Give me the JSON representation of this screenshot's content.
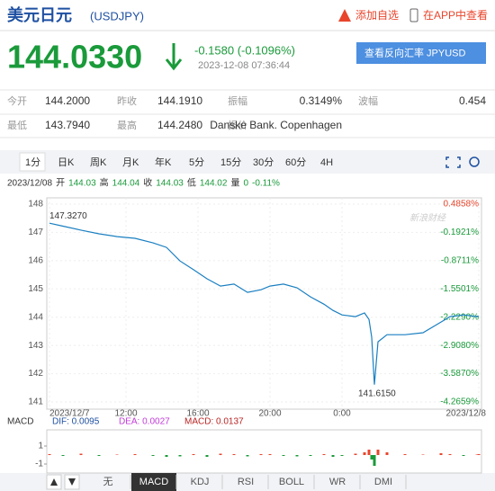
{
  "header": {
    "title": "美元日元",
    "code": "(USDJPY)",
    "add_watch": "添加自选",
    "view_app": "在APP中查看"
  },
  "quote": {
    "price": "144.0330",
    "change": "-0.1580 (-0.1096%)",
    "time": "2023-12-08 07:36:44",
    "reverse_button": "查看反向汇率 JPYUSD"
  },
  "stats": {
    "rows": [
      [
        {
          "label": "今开",
          "value": "144.2000"
        },
        {
          "label": "昨收",
          "value": "144.1910"
        },
        {
          "label": "振幅",
          "value": "0.3149%"
        },
        {
          "label": "波幅",
          "value": "0.454"
        }
      ],
      [
        {
          "label": "最低",
          "value": "143.7940"
        },
        {
          "label": "最高",
          "value": "144.2480"
        },
        {
          "label": "报价",
          "value": "Danske Bank. Copenhagen"
        }
      ]
    ]
  },
  "tabs": [
    "1分",
    "日K",
    "周K",
    "月K",
    "年K",
    "5分",
    "15分",
    "30分",
    "60分",
    "4H"
  ],
  "info_line": {
    "date": "2023/12/08",
    "items": [
      {
        "label": "开",
        "value": "144.03"
      },
      {
        "label": "高",
        "value": "144.04"
      },
      {
        "label": "收",
        "value": "144.03"
      },
      {
        "label": "低",
        "value": "144.02"
      },
      {
        "label": "量",
        "value": "0"
      }
    ],
    "change": "-0.11%"
  },
  "watermark": "新浪财经",
  "chart": {
    "type": "line",
    "color": "#1a7fc1",
    "x": [
      7.75,
      8.5,
      9.5,
      10.5,
      11.5,
      12.5,
      13.5,
      14.25,
      15,
      15.75,
      16.5,
      17.25,
      18,
      18.75,
      19.5,
      20,
      20.75,
      21.5,
      22.25,
      23,
      23.5,
      24,
      24.75,
      25.25,
      25.5,
      25.65,
      25.8,
      26,
      26.5,
      27.5,
      28.5,
      29.5,
      30,
      30.75,
      31.5,
      31.6
    ],
    "values": [
      147.327,
      147.22,
      147.08,
      146.95,
      146.85,
      146.79,
      146.63,
      146.47,
      145.99,
      145.68,
      145.36,
      145.1,
      145.17,
      144.88,
      144.97,
      145.1,
      145.17,
      145.04,
      144.72,
      144.46,
      144.24,
      144.08,
      144.02,
      144.15,
      143.92,
      143.29,
      141.615,
      143.13,
      143.38,
      143.38,
      143.45,
      143.83,
      144.02,
      144.08,
      144.02,
      144.033
    ],
    "xlim": [
      7.6,
      31.75
    ],
    "xticks": [
      {
        "value": 7.75,
        "label": "2023/12/7"
      },
      {
        "value": 12,
        "label": "12:00"
      },
      {
        "value": 16,
        "label": "16:00"
      },
      {
        "value": 20,
        "label": "20:00"
      },
      {
        "value": 24,
        "label": "0:00"
      },
      {
        "value": 31.6,
        "label": "2023/12/8"
      }
    ],
    "ylim": [
      141,
      148
    ],
    "yticks": [
      141,
      142,
      143,
      144,
      145,
      146,
      147,
      148
    ],
    "y2lim": [
      -4.2659,
      0.4858
    ],
    "y2ticks": [
      {
        "value": 0.4858,
        "label": "0.4858%"
      },
      {
        "value": -0.1921,
        "label": "-0.1921%"
      },
      {
        "value": -0.8711,
        "label": "-0.8711%"
      },
      {
        "value": -1.5501,
        "label": "-1.5501%"
      },
      {
        "value": -2.229,
        "label": "-2.2290%"
      },
      {
        "value": -2.908,
        "label": "-2.9080%"
      },
      {
        "value": -3.587,
        "label": "-3.5870%"
      },
      {
        "value": -4.2659,
        "label": "-4.2659%"
      }
    ],
    "grid": true,
    "annotations": [
      {
        "label": "147.3270",
        "x": 7.75,
        "value": 147.327
      },
      {
        "label": "141.6150",
        "x": 25.8,
        "value": 141.615
      }
    ]
  },
  "macd": {
    "name": "MACD",
    "dif": "DIF: 0.0095",
    "dea": "DEA: 0.0027",
    "macd": "MACD: 0.0137",
    "values": [
      0.1,
      -0.1,
      0.15,
      -0.1,
      0.05,
      0.1,
      -0.1,
      -0.2,
      -0.15,
      0.1,
      -0.2,
      0.15,
      0.1,
      -0.15,
      0.1,
      0.1,
      -0.1,
      -0.15,
      -0.1,
      0.1,
      -0.2,
      -0.1,
      0.15,
      0.3,
      0.6,
      -0.5,
      -1.2,
      0.6,
      0.3,
      0.1,
      0.05,
      0.2,
      0.1,
      -0.1,
      0.05,
      0.1
    ],
    "ylim": [
      -2,
      2
    ],
    "yticks": [
      1,
      -1
    ]
  },
  "indicator_tabs": [
    "无",
    "MACD",
    "KDJ",
    "RSI",
    "BOLL",
    "WR",
    "DMI"
  ]
}
